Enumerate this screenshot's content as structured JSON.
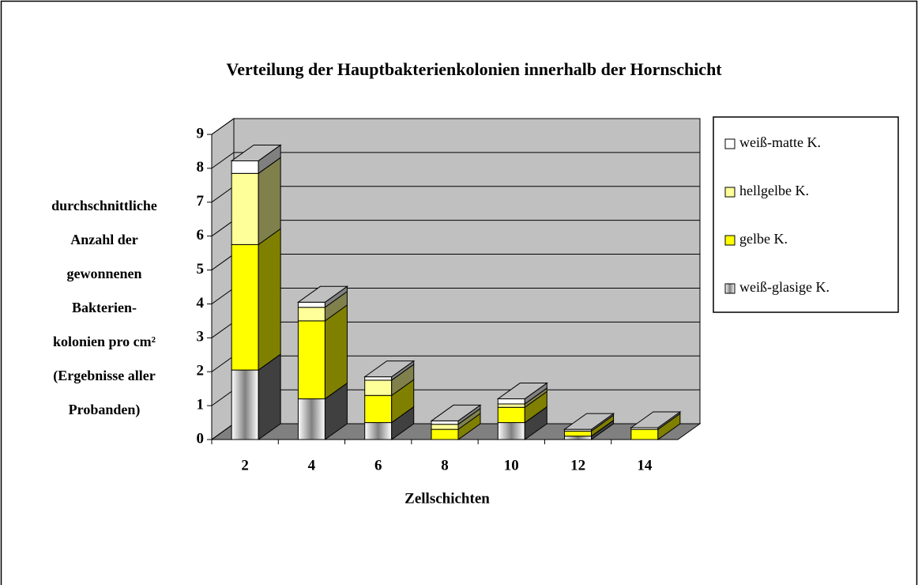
{
  "chart_data": {
    "type": "bar3d_stacked",
    "title": "Verteilung der Hauptbakterienkolonien innerhalb der Hornschicht",
    "x_label": "Zellschichten",
    "y_label": [
      "durchschnittliche",
      "Anzahl der",
      "gewonnenen",
      "Bakterien-",
      "kolonien pro cm²",
      "(Ergebnisse aller",
      "Probanden)"
    ],
    "categories": [
      "2",
      "4",
      "6",
      "8",
      "10",
      "12",
      "14"
    ],
    "series": [
      {
        "name": "weiß-matte K.",
        "color": "#ffffff",
        "values": [
          0.37,
          0.15,
          0.1,
          0.1,
          0.15,
          0.05,
          0.05
        ]
      },
      {
        "name": "hellgelbe K.",
        "color": "#ffff99",
        "values": [
          2.1,
          0.4,
          0.45,
          0.15,
          0.1,
          0,
          0
        ]
      },
      {
        "name": "gelbe K.",
        "color": "#ffff00",
        "values": [
          3.7,
          2.3,
          0.8,
          0.3,
          0.45,
          0.15,
          0.3
        ]
      },
      {
        "name": "weiß-glasige K.",
        "color": "#808080",
        "values": [
          2.05,
          1.2,
          0.5,
          0,
          0.5,
          0.1,
          0
        ]
      }
    ],
    "ylim": [
      0,
      9
    ],
    "yticks": [
      0,
      1,
      2,
      3,
      4,
      5,
      6,
      7,
      8,
      9
    ],
    "grid": true
  }
}
